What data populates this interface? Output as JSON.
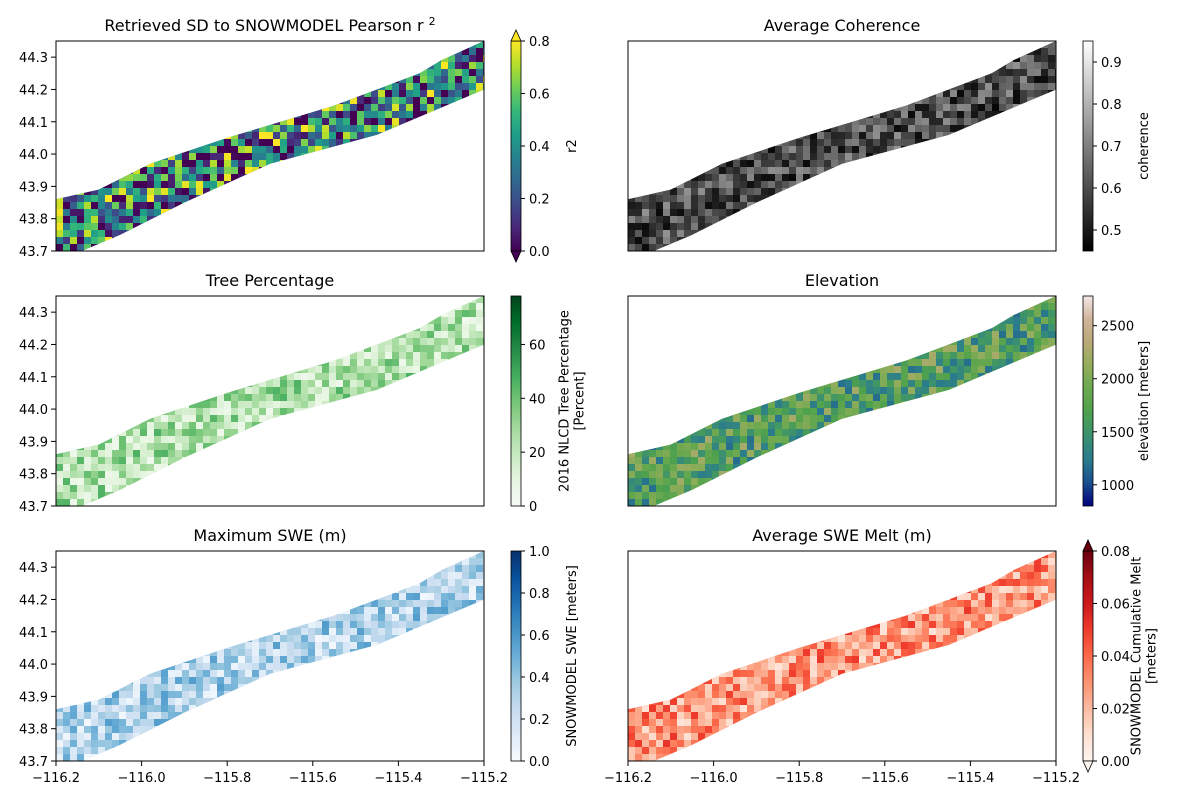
{
  "figure": {
    "panels": [
      {
        "title": "Retrieved SD to SNOWMODEL Pearson r",
        "title_superscript": "2",
        "colormap": "viridis",
        "cmap_colors": [
          "#440154",
          "#482878",
          "#3e4989",
          "#31688e",
          "#26828e",
          "#1f9e89",
          "#35b779",
          "#6ece58",
          "#b5de2b",
          "#fde725"
        ],
        "colorbar": {
          "label": [
            "r2"
          ],
          "ticks": [
            "0.0",
            "0.2",
            "0.4",
            "0.6",
            "0.8"
          ],
          "extend": "both"
        },
        "y_ticks": [
          "44.3",
          "44.2",
          "44.1",
          "44.0",
          "43.9",
          "43.8",
          "43.7"
        ],
        "x_ticks": []
      },
      {
        "title": "Average Coherence",
        "colormap": "gray",
        "cmap_colors": [
          "#000000",
          "#ffffff"
        ],
        "colorbar": {
          "label": [
            "coherence"
          ],
          "ticks": [
            "0.5",
            "0.6",
            "0.7",
            "0.8",
            "0.9"
          ],
          "extend": "neither"
        },
        "y_ticks": [],
        "x_ticks": []
      },
      {
        "title": "Tree Percentage",
        "colormap": "Greens",
        "cmap_colors": [
          "#f7fcf5",
          "#e5f5e0",
          "#c7e9c0",
          "#a1d99b",
          "#74c476",
          "#41ab5d",
          "#238b45",
          "#006d2c",
          "#00441b"
        ],
        "colorbar": {
          "label": [
            "2016 NLCD Tree Percentage",
            "[Percent]"
          ],
          "ticks": [
            "0",
            "20",
            "40",
            "60"
          ],
          "extend": "neither"
        },
        "y_ticks": [
          "44.3",
          "44.2",
          "44.1",
          "44.0",
          "43.9",
          "43.8",
          "43.7"
        ],
        "x_ticks": []
      },
      {
        "title": "Elevation",
        "colormap": "gist_earth",
        "cmap_colors": [
          "#000080",
          "#1a4f8f",
          "#2b7c8c",
          "#3b9070",
          "#4ea14e",
          "#6aa84f",
          "#93ad5c",
          "#b8a976",
          "#d2b39a",
          "#f2e8e6"
        ],
        "colorbar": {
          "label": [
            "elevation [meters]"
          ],
          "ticks": [
            "1000",
            "1500",
            "2000",
            "2500"
          ],
          "extend": "neither"
        },
        "y_ticks": [],
        "x_ticks": []
      },
      {
        "title": "Maximum SWE (m)",
        "colormap": "Blues",
        "cmap_colors": [
          "#f7fbff",
          "#deebf7",
          "#c6dbef",
          "#9ecae1",
          "#6baed6",
          "#4292c6",
          "#2171b5",
          "#08519c",
          "#08306b"
        ],
        "colorbar": {
          "label": [
            "SNOWMODEL SWE [meters]"
          ],
          "ticks": [
            "0.0",
            "0.2",
            "0.4",
            "0.6",
            "0.8",
            "1.0"
          ],
          "extend": "neither"
        },
        "y_ticks": [
          "44.3",
          "44.2",
          "44.1",
          "44.0",
          "43.9",
          "43.8",
          "43.7"
        ],
        "x_ticks": [
          "−116.2",
          "−116.0",
          "−115.8",
          "−115.6",
          "−115.4",
          "−115.2"
        ]
      },
      {
        "title": "Average SWE Melt (m)",
        "colormap": "Reds",
        "cmap_colors": [
          "#fff5f0",
          "#fee0d2",
          "#fcbba1",
          "#fc9272",
          "#fb6a4a",
          "#ef3b2c",
          "#cb181d",
          "#a50f15",
          "#67000d"
        ],
        "colorbar": {
          "label": [
            "SNOWMODEL Cumulative Melt",
            "[meters]"
          ],
          "ticks": [
            "0.00",
            "0.02",
            "0.04",
            "0.06",
            "0.08"
          ],
          "extend": "both"
        },
        "y_ticks": [],
        "x_ticks": [
          "−116.2",
          "−116.0",
          "−115.8",
          "−115.6",
          "−115.4",
          "−115.2"
        ]
      }
    ]
  },
  "chart_data": [
    {
      "type": "heatmap",
      "title": "Retrieved SD to SNOWMODEL Pearson r²",
      "colorbar_label": "r2",
      "xlim": [
        -116.2,
        -115.2
      ],
      "ylim": [
        43.7,
        44.35
      ],
      "vmin": 0.0,
      "vmax": 0.8,
      "colorbar_ticks": [
        0.0,
        0.2,
        0.4,
        0.6,
        0.8
      ],
      "yticks": [
        44.3,
        44.2,
        44.1,
        44.0,
        43.9,
        43.8,
        43.7
      ],
      "swath": {
        "southwest_corner": [
          -116.2,
          43.8
        ],
        "northeast_corner": [
          -115.2,
          44.33
        ],
        "width_deg_lat": 0.2
      },
      "typical_value": 0.35
    },
    {
      "type": "heatmap",
      "title": "Average Coherence",
      "colorbar_label": "coherence",
      "xlim": [
        -116.2,
        -115.2
      ],
      "ylim": [
        43.7,
        44.35
      ],
      "vmin": 0.45,
      "vmax": 0.95,
      "colorbar_ticks": [
        0.5,
        0.6,
        0.7,
        0.8,
        0.9
      ],
      "typical_value": 0.6
    },
    {
      "type": "heatmap",
      "title": "Tree Percentage",
      "colorbar_label": "2016 NLCD Tree Percentage [Percent]",
      "xlim": [
        -116.2,
        -115.2
      ],
      "ylim": [
        43.7,
        44.35
      ],
      "vmin": 0,
      "vmax": 78,
      "colorbar_ticks": [
        0,
        20,
        40,
        60
      ],
      "typical_value": 25
    },
    {
      "type": "heatmap",
      "title": "Elevation",
      "colorbar_label": "elevation [meters]",
      "xlim": [
        -116.2,
        -115.2
      ],
      "ylim": [
        43.7,
        44.35
      ],
      "vmin": 800,
      "vmax": 2780,
      "colorbar_ticks": [
        1000,
        1500,
        2000,
        2500
      ],
      "typical_value": 1700
    },
    {
      "type": "heatmap",
      "title": "Maximum SWE (m)",
      "colorbar_label": "SNOWMODEL SWE [meters]",
      "xlim": [
        -116.2,
        -115.2
      ],
      "ylim": [
        43.7,
        44.35
      ],
      "vmin": 0.0,
      "vmax": 1.0,
      "colorbar_ticks": [
        0.0,
        0.2,
        0.4,
        0.6,
        0.8,
        1.0
      ],
      "xticks": [
        -116.2,
        -116.0,
        -115.8,
        -115.6,
        -115.4,
        -115.2
      ],
      "typical_value": 0.3
    },
    {
      "type": "heatmap",
      "title": "Average SWE Melt (m)",
      "colorbar_label": "SNOWMODEL Cumulative Melt [meters]",
      "xlim": [
        -116.2,
        -115.2
      ],
      "ylim": [
        43.7,
        44.35
      ],
      "vmin": 0.0,
      "vmax": 0.08,
      "colorbar_ticks": [
        0.0,
        0.02,
        0.04,
        0.06,
        0.08
      ],
      "xticks": [
        -116.2,
        -116.0,
        -115.8,
        -115.6,
        -115.4,
        -115.2
      ],
      "typical_value": 0.03
    }
  ]
}
